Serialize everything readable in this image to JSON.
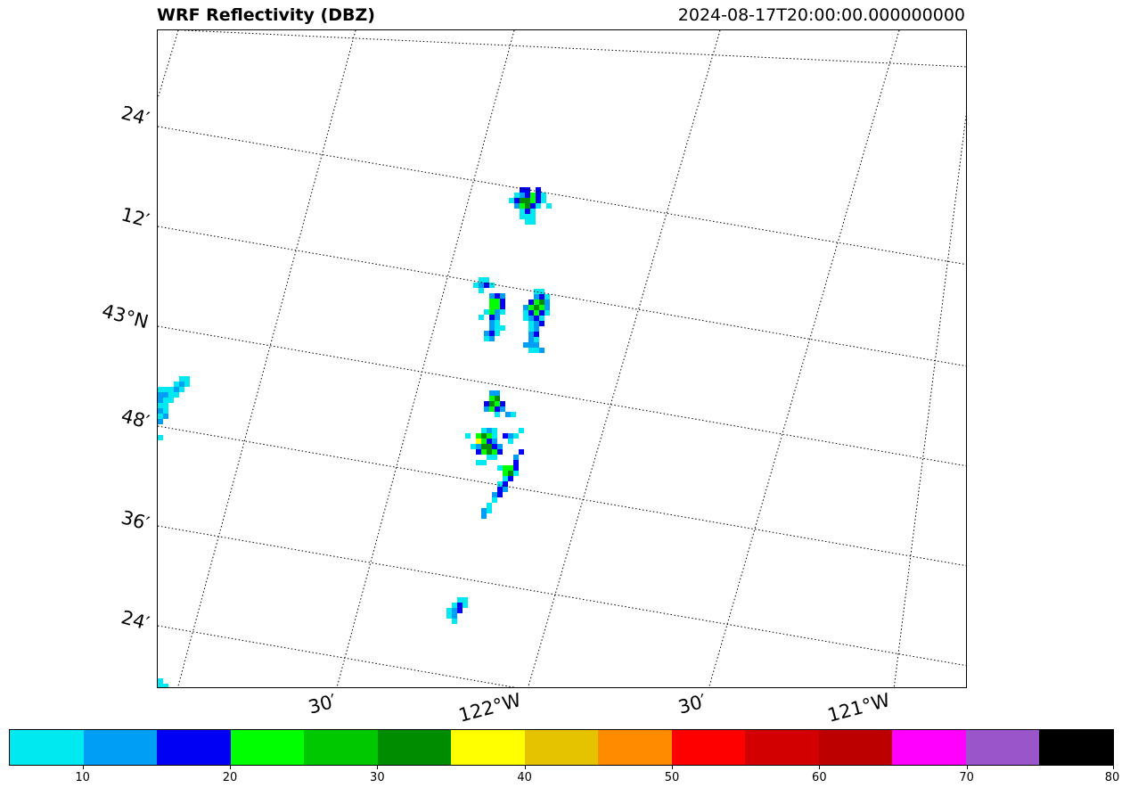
{
  "header": {
    "title": "WRF Reflectivity (DBZ)",
    "timestamp": "2024-08-17T20:00:00.000000000"
  },
  "map": {
    "lat_labels": [
      "24′",
      "12′",
      "43°N",
      "48′",
      "36′",
      "24′"
    ],
    "lon_labels": [
      "30′",
      "122°W",
      "30′",
      "121°W"
    ],
    "gridline_style": "dotted"
  },
  "colorbar": {
    "colors": [
      "#00e8f0",
      "#009ff5",
      "#0000f5",
      "#00ff00",
      "#00c800",
      "#008c00",
      "#ffff00",
      "#e6c300",
      "#ff8c00",
      "#ff0000",
      "#d20000",
      "#bc0000",
      "#ff00ff",
      "#9955c9",
      "#000000"
    ],
    "ticks": [
      "10",
      "20",
      "30",
      "40",
      "50",
      "60",
      "70",
      "80"
    ],
    "range": [
      5,
      80
    ],
    "units": "dBZ"
  },
  "chart_data": {
    "type": "heatmap",
    "title": "WRF Reflectivity (DBZ)",
    "subtitle": "2024-08-17T20:00:00.000000000",
    "value_range": [
      5,
      80
    ],
    "lon_ticks": [
      "30′",
      "122°W",
      "30′",
      "121°W"
    ],
    "lat_ticks": [
      "24′",
      "12′",
      "43°N",
      "48′",
      "36′",
      "24′"
    ],
    "cells_dbz": [
      {
        "area": "north cell (~43.2°N, 121.9°W)",
        "max_dbz": 30
      },
      {
        "area": "central-west cell (~43.0°N, 122.05°W)",
        "max_dbz": 25
      },
      {
        "area": "central-east cell (~43.0°N, 121.9°W)",
        "max_dbz": 30
      },
      {
        "area": "south cluster (~42.8°N, 122.05°W)",
        "max_dbz": 35
      },
      {
        "area": "far-west edge cell (~42.85°N, 122.7°W)",
        "max_dbz": 15
      }
    ]
  }
}
